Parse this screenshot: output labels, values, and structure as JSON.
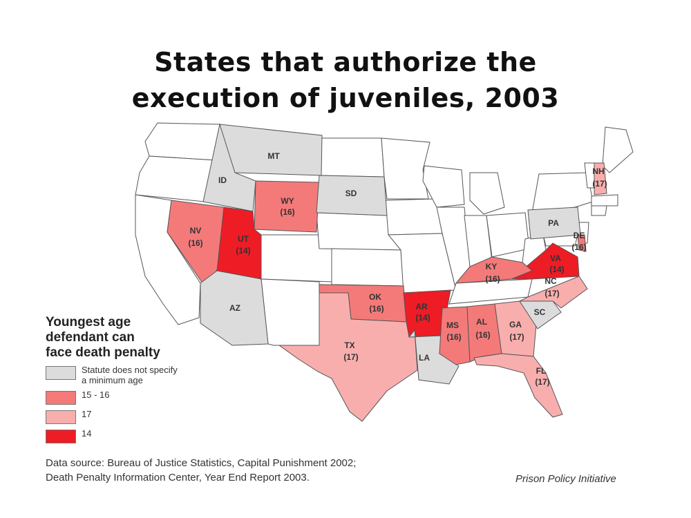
{
  "title": {
    "line1": "States that authorize the",
    "line2": "execution of juveniles, 2003"
  },
  "colors": {
    "none": "#ffffff",
    "unspecified": "#dcdcdc",
    "age_15_16": "#f47a7a",
    "age_17": "#f9aeae",
    "age_14": "#ee1c25",
    "border": "#555555"
  },
  "legend": {
    "title_line1": "Youngest age",
    "title_line2": "defendant can",
    "title_line3": "face death penalty",
    "items": [
      {
        "label_line1": "Statute does not specify",
        "label_line2": "a minimum age",
        "color": "#dcdcdc"
      },
      {
        "label_line1": "15 - 16",
        "label_line2": "",
        "color": "#f47a7a"
      },
      {
        "label_line1": "17",
        "label_line2": "",
        "color": "#f9aeae"
      },
      {
        "label_line1": "14",
        "label_line2": "",
        "color": "#ee1c25"
      }
    ]
  },
  "states": [
    {
      "abbr": "MT",
      "age": ""
    },
    {
      "abbr": "ID",
      "age": ""
    },
    {
      "abbr": "WY",
      "age": "(16)"
    },
    {
      "abbr": "SD",
      "age": ""
    },
    {
      "abbr": "NV",
      "age": "(16)"
    },
    {
      "abbr": "UT",
      "age": "(14)"
    },
    {
      "abbr": "AZ",
      "age": ""
    },
    {
      "abbr": "OK",
      "age": "(16)"
    },
    {
      "abbr": "TX",
      "age": "(17)"
    },
    {
      "abbr": "AR",
      "age": "(14)"
    },
    {
      "abbr": "LA",
      "age": ""
    },
    {
      "abbr": "MS",
      "age": "(16)"
    },
    {
      "abbr": "AL",
      "age": "(16)"
    },
    {
      "abbr": "GA",
      "age": "(17)"
    },
    {
      "abbr": "FL",
      "age": "(17)"
    },
    {
      "abbr": "SC",
      "age": ""
    },
    {
      "abbr": "NC",
      "age": "(17)"
    },
    {
      "abbr": "VA",
      "age": "(14)"
    },
    {
      "abbr": "KY",
      "age": "(16)"
    },
    {
      "abbr": "PA",
      "age": ""
    },
    {
      "abbr": "DE",
      "age": "(16)"
    },
    {
      "abbr": "NH",
      "age": "(17)"
    }
  ],
  "source": {
    "line1": "Data source: Bureau of Justice Statistics, Capital Punishment 2002;",
    "line2": "Death Penalty Information Center, Year End Report 2003."
  },
  "credit": "Prison Policy Initiative"
}
